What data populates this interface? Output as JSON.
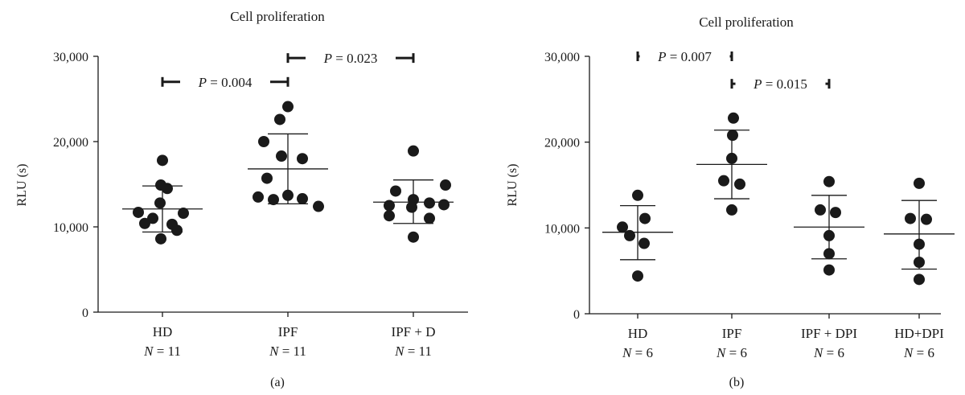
{
  "chart_data": [
    {
      "type": "scatter",
      "panel_label": "(a)",
      "title": "Cell proliferation",
      "ylabel": "RLU (s)",
      "ylim": [
        0,
        30000
      ],
      "yticks": [
        0,
        10000,
        20000,
        30000
      ],
      "ytick_labels": [
        "0",
        "10,000",
        "20,000",
        "30,000"
      ],
      "groups": [
        {
          "label": "HD",
          "n_label": "11",
          "values": [
            17800,
            14900,
            14500,
            12800,
            11700,
            11600,
            11000,
            10400,
            10300,
            9600,
            8600
          ],
          "mean": 12100,
          "sd_low": 9400,
          "sd_high": 14800
        },
        {
          "label": "IPF",
          "n_label": "11",
          "values": [
            24100,
            22600,
            20000,
            18300,
            18000,
            15700,
            13700,
            13500,
            13300,
            13200,
            12400
          ],
          "mean": 16800,
          "sd_low": 12700,
          "sd_high": 20900
        },
        {
          "label": "IPF + D",
          "n_label": "11",
          "values": [
            18900,
            14900,
            14200,
            13200,
            12800,
            12600,
            12500,
            12300,
            11300,
            11000,
            8800
          ],
          "mean": 12900,
          "sd_low": 10400,
          "sd_high": 15500
        }
      ],
      "comparisons": [
        {
          "from": 0,
          "to": 1,
          "p_prefix": "P",
          "p_text": "= 0.004",
          "y": 27000
        },
        {
          "from": 1,
          "to": 2,
          "p_prefix": "P",
          "p_text": "= 0.023",
          "y": 29800
        }
      ]
    },
    {
      "type": "scatter",
      "panel_label": "(b)",
      "title": "Cell proliferation",
      "ylabel": "RLU (s)",
      "ylim": [
        0,
        30000
      ],
      "yticks": [
        0,
        10000,
        20000,
        30000
      ],
      "ytick_labels": [
        "0",
        "10,000",
        "20,000",
        "30,000"
      ],
      "groups": [
        {
          "label": "HD",
          "n_label": "6",
          "values": [
            13800,
            11100,
            10100,
            9100,
            8200,
            4400
          ],
          "mean": 9500,
          "sd_low": 6300,
          "sd_high": 12600
        },
        {
          "label": "IPF",
          "n_label": "6",
          "values": [
            22800,
            20800,
            18100,
            15500,
            15100,
            12100
          ],
          "mean": 17400,
          "sd_low": 13400,
          "sd_high": 21400
        },
        {
          "label": "IPF + DPI",
          "n_label": "6",
          "values": [
            15400,
            12100,
            11800,
            9100,
            7000,
            5100
          ],
          "mean": 10100,
          "sd_low": 6400,
          "sd_high": 13800
        },
        {
          "label": "HD+DPI",
          "n_label": "6",
          "values": [
            15200,
            11100,
            11000,
            8100,
            6000,
            4000
          ],
          "mean": 9300,
          "sd_low": 5200,
          "sd_high": 13200
        }
      ],
      "comparisons": [
        {
          "from": 0,
          "to": 1,
          "p_prefix": "P",
          "p_text": "= 0.007",
          "y": 30000
        },
        {
          "from": 1,
          "to": 2,
          "p_prefix": "P",
          "p_text": "= 0.015",
          "y": 26800
        }
      ]
    }
  ]
}
